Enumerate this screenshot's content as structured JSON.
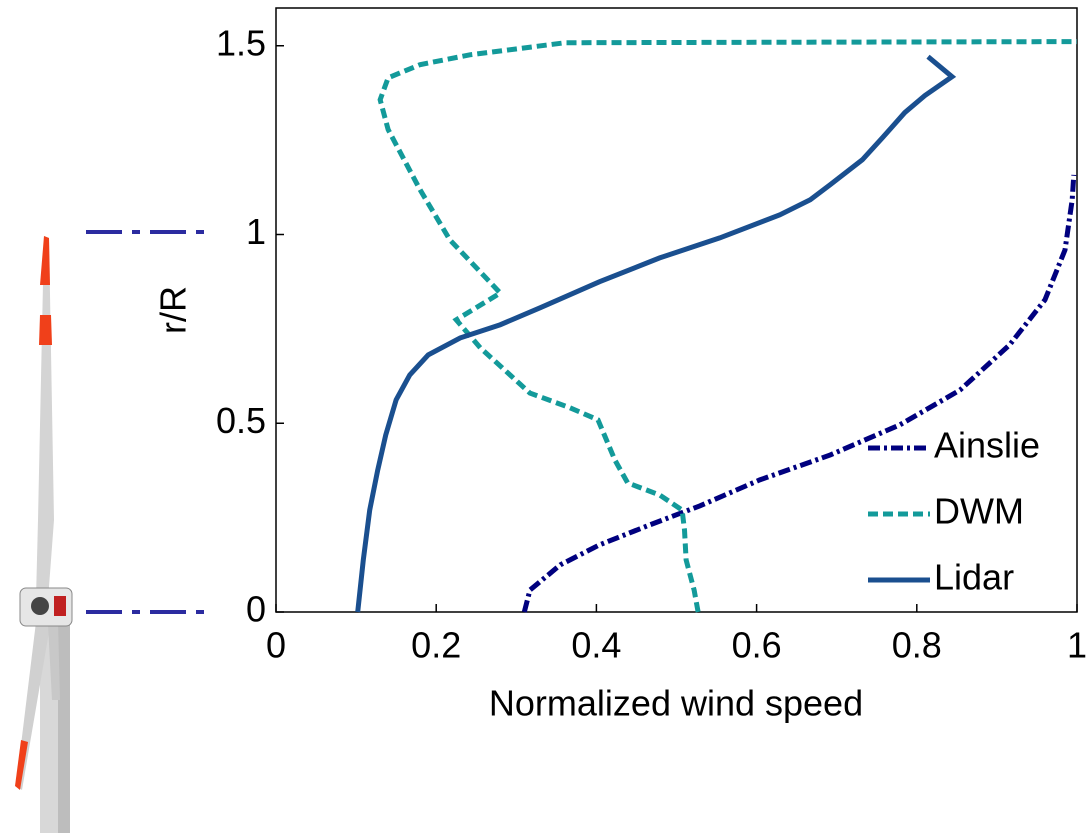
{
  "chart_data": {
    "type": "line",
    "xlabel": "Normalized wind speed",
    "ylabel": "r/R",
    "xlim": [
      0,
      1
    ],
    "ylim": [
      0,
      1.6
    ],
    "xticks": [
      0,
      0.2,
      0.4,
      0.6,
      0.8,
      1
    ],
    "yticks": [
      0,
      0.5,
      1,
      1.5
    ],
    "legend": "lower right",
    "series": [
      {
        "name": "Ainslie",
        "color": "#00007f",
        "style": "dashdot",
        "x": [
          0.31,
          0.317,
          0.355,
          0.404,
          0.467,
          0.529,
          0.604,
          0.692,
          0.779,
          0.854,
          0.916,
          0.96,
          0.985,
          0.994,
          0.996
        ],
        "values": [
          0,
          0.058,
          0.125,
          0.178,
          0.231,
          0.281,
          0.35,
          0.416,
          0.496,
          0.588,
          0.708,
          0.827,
          0.959,
          1.092,
          1.158
        ]
      },
      {
        "name": "DWM",
        "color": "#139a9a",
        "style": "dashed",
        "x": [
          0.527,
          0.522,
          0.512,
          0.51,
          0.507,
          0.479,
          0.439,
          0.423,
          0.402,
          0.367,
          0.317,
          0.255,
          0.225,
          0.28,
          0.217,
          0.18,
          0.14,
          0.13,
          0.14,
          0.18,
          0.242,
          0.361,
          1.0
        ],
        "values": [
          0,
          0.058,
          0.138,
          0.217,
          0.27,
          0.31,
          0.342,
          0.403,
          0.509,
          0.541,
          0.58,
          0.7,
          0.774,
          0.845,
          0.986,
          1.118,
          1.278,
          1.357,
          1.415,
          1.45,
          1.476,
          1.508,
          1.511
        ]
      },
      {
        "name": "Lidar",
        "color": "#1a4f8f",
        "style": "solid",
        "x": [
          0.102,
          0.109,
          0.117,
          0.127,
          0.137,
          0.15,
          0.167,
          0.19,
          0.23,
          0.28,
          0.33,
          0.404,
          0.479,
          0.554,
          0.629,
          0.667,
          0.692,
          0.732,
          0.757,
          0.785,
          0.81,
          0.844,
          0.814
        ],
        "values": [
          0,
          0.138,
          0.27,
          0.376,
          0.469,
          0.562,
          0.628,
          0.681,
          0.726,
          0.761,
          0.806,
          0.875,
          0.938,
          0.991,
          1.052,
          1.092,
          1.132,
          1.198,
          1.256,
          1.323,
          1.368,
          1.418,
          1.471
        ]
      }
    ]
  }
}
